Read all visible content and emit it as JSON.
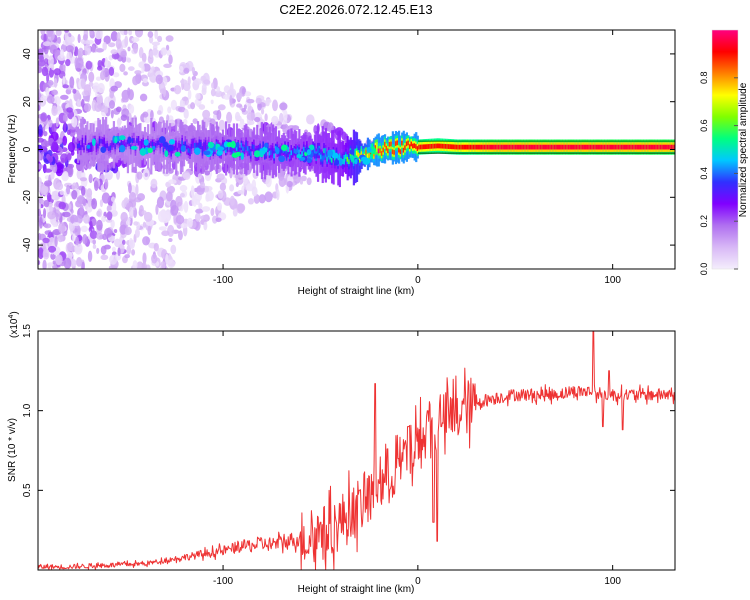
{
  "title": "C2E2.2026.072.12.45.E13",
  "chart_data": [
    {
      "type": "heatmap",
      "name": "spectrogram",
      "xlabel": "Height of straight line (km)",
      "ylabel": "Frequency (Hz)",
      "xlim": [
        -195,
        132
      ],
      "ylim": [
        -50,
        50
      ],
      "xticks": [
        -100,
        0,
        100
      ],
      "yticks": [
        -40,
        -20,
        0,
        20,
        40
      ],
      "colorbar": {
        "label": "Normalized spectral amplitude",
        "range": [
          0,
          1
        ],
        "ticks": [
          0.0,
          0.2,
          0.4,
          0.6,
          0.8
        ],
        "colormap": [
          "#f4eefc",
          "#d8b8f6",
          "#b070f0",
          "#8000ff",
          "#3030ff",
          "#00c8ff",
          "#00ff80",
          "#80ff00",
          "#ffff00",
          "#ff8000",
          "#ff0000",
          "#ff0080"
        ]
      },
      "ridge_center_hz": [
        [
          -170,
          2
        ],
        [
          -150,
          2
        ],
        [
          -130,
          1
        ],
        [
          -110,
          1
        ],
        [
          -90,
          0
        ],
        [
          -70,
          -1
        ],
        [
          -50,
          -2
        ],
        [
          -40,
          -4
        ],
        [
          -30,
          -3
        ],
        [
          -20,
          0
        ],
        [
          -10,
          1
        ],
        [
          0,
          1
        ],
        [
          10,
          1.5
        ],
        [
          20,
          1
        ],
        [
          40,
          1
        ],
        [
          60,
          1
        ],
        [
          80,
          1
        ],
        [
          100,
          1
        ],
        [
          130,
          1
        ]
      ],
      "ridge_peak_amplitude": [
        [
          -170,
          0.3
        ],
        [
          -130,
          0.3
        ],
        [
          -100,
          0.35
        ],
        [
          -60,
          0.4
        ],
        [
          -40,
          0.45
        ],
        [
          -20,
          0.85
        ],
        [
          0,
          0.9
        ],
        [
          20,
          0.9
        ],
        [
          40,
          0.95
        ],
        [
          80,
          0.95
        ],
        [
          100,
          0.95
        ],
        [
          130,
          0.95
        ]
      ]
    },
    {
      "type": "line",
      "name": "snr",
      "xlabel": "Height of straight line (km)",
      "ylabel": "SNR (10 * v/v)",
      "scale_label": "(x10",
      "scale_exp": "4",
      "scale_close": ")",
      "xlim": [
        -195,
        132
      ],
      "ylim": [
        0,
        1.5
      ],
      "xticks": [
        -100,
        0,
        100
      ],
      "yticks": [
        0.5,
        1.0,
        1.5
      ],
      "color": "#ee3333",
      "series": [
        {
          "name": "SNR",
          "x": [
            -195,
            -180,
            -160,
            -140,
            -130,
            -120,
            -110,
            -100,
            -90,
            -80,
            -70,
            -60,
            -50,
            -45,
            -40,
            -35,
            -30,
            -25,
            -20,
            -15,
            -10,
            -5,
            0,
            5,
            10,
            15,
            20,
            25,
            30,
            40,
            50,
            60,
            70,
            80,
            90,
            95,
            100,
            110,
            120,
            132
          ],
          "values": [
            0.02,
            0.02,
            0.03,
            0.04,
            0.06,
            0.08,
            0.1,
            0.12,
            0.15,
            0.16,
            0.17,
            0.2,
            0.22,
            0.25,
            0.3,
            0.35,
            0.4,
            0.45,
            0.55,
            0.6,
            0.65,
            0.72,
            0.8,
            0.85,
            0.9,
            0.95,
            0.98,
            1.02,
            1.05,
            1.08,
            1.1,
            1.1,
            1.1,
            1.12,
            1.12,
            1.1,
            1.1,
            1.1,
            1.1,
            1.1
          ]
        }
      ],
      "spikes": [
        [
          -50,
          0.3
        ],
        [
          -30,
          0.5
        ],
        [
          -22,
          1.17
        ],
        [
          -17,
          0.55
        ],
        [
          -10,
          0.7
        ],
        [
          -5,
          0.9
        ],
        [
          5,
          1.0
        ],
        [
          8,
          0.3
        ],
        [
          10,
          0.18
        ],
        [
          12,
          0.9
        ],
        [
          90,
          1.5
        ],
        [
          95,
          0.9
        ],
        [
          98,
          1.25
        ],
        [
          105,
          0.88
        ]
      ]
    }
  ]
}
